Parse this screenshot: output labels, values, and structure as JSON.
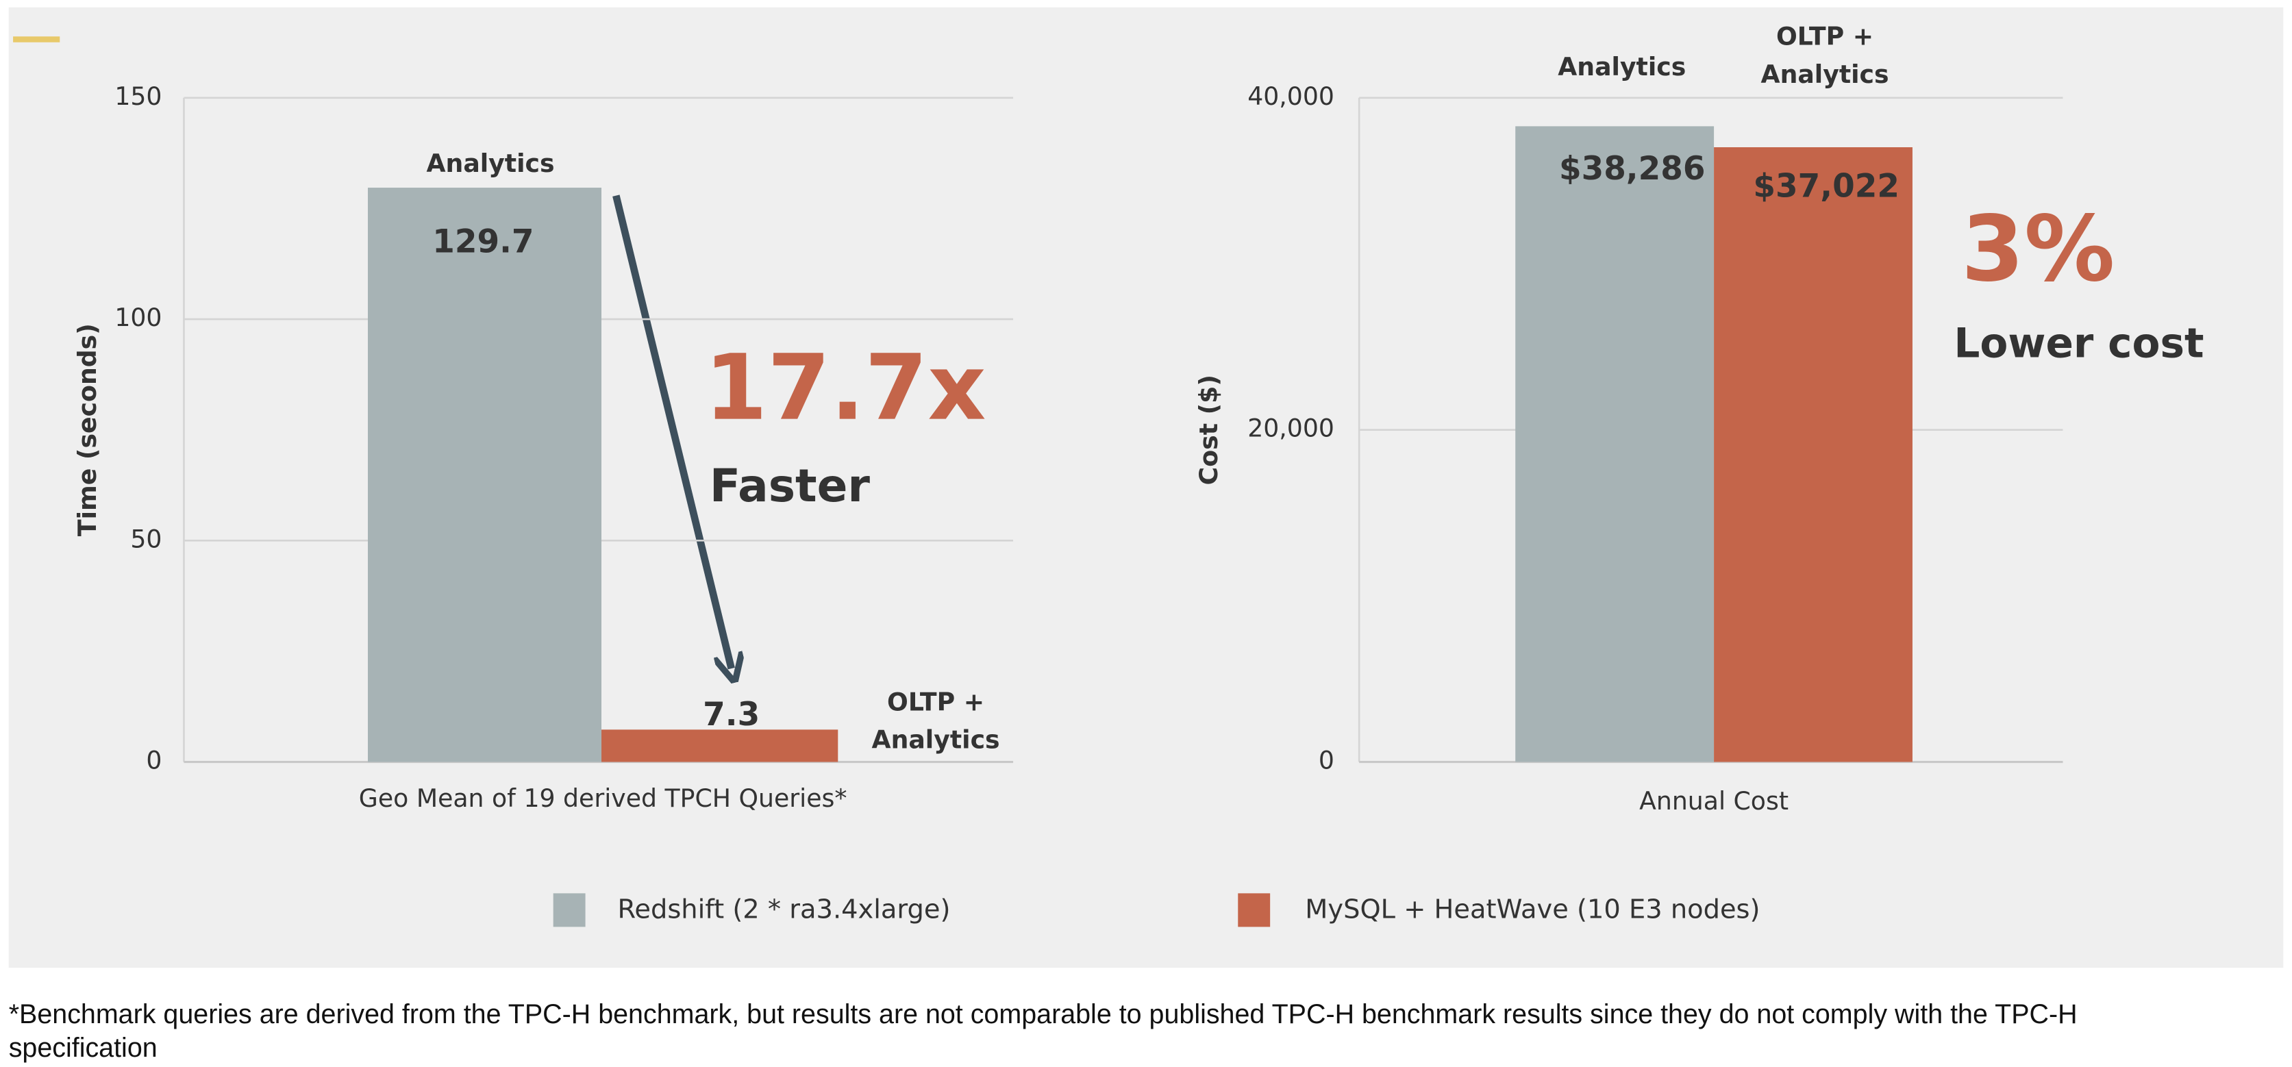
{
  "chart_data": [
    {
      "type": "bar",
      "categories": [
        "Geo Mean of 19 derived TPCH Queries*"
      ],
      "y_label": "Time (seconds)",
      "ylim": [
        0,
        150
      ],
      "yticks": [
        0,
        50,
        100,
        150
      ],
      "grid": true,
      "series": [
        {
          "name": "Redshift (2 * ra3.4xlarge)",
          "color": "#a7b3b5",
          "values": [
            129.7
          ],
          "label_lines": [
            "Analytics"
          ]
        },
        {
          "name": "MySQL + HeatWave (10 E3 nodes)",
          "color": "#c4654a",
          "values": [
            7.3
          ],
          "label_lines": [
            "OLTP +",
            "Analytics"
          ]
        }
      ],
      "annotations": [
        "17.7x",
        "Faster"
      ]
    },
    {
      "type": "bar",
      "categories": [
        "Annual Cost"
      ],
      "y_label": "Cost ($)",
      "ylim": [
        0,
        40000
      ],
      "yticks": [
        0,
        {
          "value": 20000,
          "label": "20,000"
        },
        {
          "value": 40000,
          "label": "40,000"
        }
      ],
      "grid": true,
      "series": [
        {
          "color": "#a7b3b5",
          "values": [
            38286
          ],
          "value_labels": [
            "$38,286"
          ],
          "label_lines": [
            "Analytics"
          ]
        },
        {
          "color": "#c4654a",
          "values": [
            37022
          ],
          "value_labels": [
            "$37,022"
          ],
          "label_lines": [
            "OLTP +",
            "Analytics"
          ]
        }
      ],
      "annotations": [
        "3%",
        "Lower cost"
      ]
    }
  ],
  "footnote": "*Benchmark queries are derived from the TPC-H benchmark, but results are not comparable to published TPC-H benchmark results since they do not comply with the TPC-H specification"
}
